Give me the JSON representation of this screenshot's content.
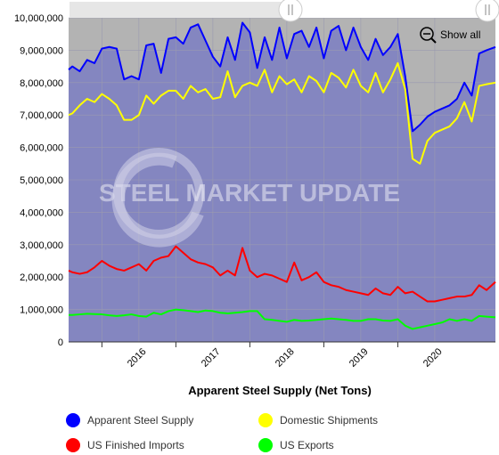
{
  "chart_data": {
    "type": "area",
    "title": "",
    "xlabel": "Apparent Steel Supply (Net Tons)",
    "ylabel": "",
    "x_tick_labels": [
      "2016",
      "2017",
      "2018",
      "2019",
      "2020"
    ],
    "y_ticks": [
      0,
      1000000,
      2000000,
      3000000,
      4000000,
      5000000,
      6000000,
      7000000,
      8000000,
      9000000,
      10000000
    ],
    "y_tick_labels": [
      "0",
      "1,000,000",
      "2,000,000",
      "3,000,000",
      "4,000,000",
      "5,000,000",
      "6,000,000",
      "7,000,000",
      "8,000,000",
      "9,000,000",
      "10,000,000"
    ],
    "ylim": [
      0,
      10000000
    ],
    "x_range": [
      2015.55,
      2021.32
    ],
    "grid": true,
    "legend_position": "bottom",
    "watermark": "STEEL MARKET UPDATE",
    "reset_zoom_label": "Show all",
    "x": [
      2015.55,
      2015.6,
      2015.7,
      2015.8,
      2015.9,
      2016.0,
      2016.1,
      2016.2,
      2016.3,
      2016.4,
      2016.5,
      2016.6,
      2016.7,
      2016.8,
      2016.9,
      2017.0,
      2017.1,
      2017.2,
      2017.3,
      2017.4,
      2017.5,
      2017.6,
      2017.7,
      2017.8,
      2017.9,
      2018.0,
      2018.1,
      2018.2,
      2018.3,
      2018.4,
      2018.5,
      2018.6,
      2018.7,
      2018.8,
      2018.9,
      2019.0,
      2019.1,
      2019.2,
      2019.3,
      2019.4,
      2019.5,
      2019.6,
      2019.7,
      2019.8,
      2019.9,
      2020.0,
      2020.1,
      2020.2,
      2020.3,
      2020.4,
      2020.5,
      2020.6,
      2020.7,
      2020.8,
      2020.9,
      2021.0,
      2021.1,
      2021.2,
      2021.32
    ],
    "series": [
      {
        "name": "Apparent Steel Supply",
        "color": "#0000ff",
        "values": [
          8400000,
          8500000,
          8350000,
          8700000,
          8600000,
          9050000,
          9100000,
          9050000,
          8100000,
          8200000,
          8100000,
          9150000,
          9200000,
          8300000,
          9350000,
          9400000,
          9200000,
          9700000,
          9800000,
          9300000,
          8800000,
          8500000,
          9400000,
          8700000,
          9850000,
          9550000,
          8450000,
          9400000,
          8700000,
          9700000,
          8750000,
          9500000,
          9600000,
          9100000,
          9700000,
          8750000,
          9600000,
          9750000,
          9000000,
          9700000,
          9100000,
          8700000,
          9350000,
          8850000,
          9100000,
          9500000,
          8200000,
          6500000,
          6700000,
          6950000,
          7100000,
          7200000,
          7300000,
          7500000,
          8000000,
          7600000,
          8900000,
          9000000,
          9100000
        ]
      },
      {
        "name": "Domestic Shipments",
        "color": "#ffff00",
        "values": [
          7000000,
          7050000,
          7300000,
          7500000,
          7400000,
          7650000,
          7500000,
          7300000,
          6850000,
          6850000,
          7000000,
          7600000,
          7350000,
          7600000,
          7750000,
          7750000,
          7500000,
          7900000,
          7700000,
          7800000,
          7500000,
          7550000,
          8350000,
          7550000,
          7900000,
          8000000,
          7900000,
          8400000,
          7700000,
          8200000,
          7950000,
          8100000,
          7700000,
          8200000,
          8050000,
          7700000,
          8300000,
          8150000,
          7850000,
          8400000,
          7900000,
          7700000,
          8300000,
          7700000,
          8100000,
          8600000,
          7800000,
          5650000,
          5500000,
          6200000,
          6450000,
          6550000,
          6650000,
          6900000,
          7400000,
          6800000,
          7900000,
          7950000,
          8000000
        ]
      },
      {
        "name": "US Finished Imports",
        "color": "#ff0000",
        "values": [
          2200000,
          2150000,
          2100000,
          2150000,
          2300000,
          2500000,
          2350000,
          2250000,
          2200000,
          2300000,
          2400000,
          2200000,
          2500000,
          2600000,
          2650000,
          2950000,
          2750000,
          2550000,
          2450000,
          2400000,
          2300000,
          2050000,
          2200000,
          2050000,
          2900000,
          2200000,
          2000000,
          2100000,
          2050000,
          1950000,
          1850000,
          2450000,
          1900000,
          2000000,
          2150000,
          1850000,
          1750000,
          1700000,
          1600000,
          1550000,
          1500000,
          1450000,
          1650000,
          1500000,
          1450000,
          1700000,
          1500000,
          1550000,
          1400000,
          1250000,
          1250000,
          1300000,
          1350000,
          1400000,
          1400000,
          1450000,
          1750000,
          1600000,
          1850000
        ]
      },
      {
        "name": "US Exports",
        "color": "#00ff00",
        "values": [
          830000,
          830000,
          850000,
          870000,
          860000,
          850000,
          820000,
          800000,
          820000,
          850000,
          800000,
          780000,
          900000,
          850000,
          950000,
          1000000,
          980000,
          950000,
          920000,
          970000,
          950000,
          900000,
          880000,
          900000,
          920000,
          950000,
          950000,
          700000,
          680000,
          650000,
          620000,
          680000,
          650000,
          660000,
          680000,
          700000,
          720000,
          700000,
          680000,
          650000,
          650000,
          700000,
          700000,
          660000,
          650000,
          700000,
          500000,
          400000,
          450000,
          500000,
          550000,
          600000,
          700000,
          650000,
          700000,
          650000,
          800000,
          780000,
          760000
        ]
      }
    ]
  },
  "legend": [
    {
      "label": "Apparent Steel Supply",
      "color": "#0000ff"
    },
    {
      "label": "Domestic Shipments",
      "color": "#ffff00"
    },
    {
      "label": "US Finished Imports",
      "color": "#ff0000"
    },
    {
      "label": "US Exports",
      "color": "#00ff00"
    }
  ]
}
